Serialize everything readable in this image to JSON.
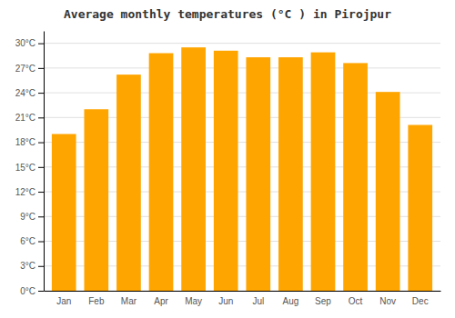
{
  "chart_data": {
    "type": "bar",
    "title": "Average monthly temperatures (°C ) in Pirojpur",
    "categories": [
      "Jan",
      "Feb",
      "Mar",
      "Apr",
      "May",
      "Jun",
      "Jul",
      "Aug",
      "Sep",
      "Oct",
      "Nov",
      "Dec"
    ],
    "values": [
      19.0,
      22.0,
      26.2,
      28.8,
      29.5,
      29.1,
      28.3,
      28.3,
      28.9,
      27.6,
      24.1,
      20.1
    ],
    "color": "#FFA500",
    "ylim": [
      0,
      31.5
    ],
    "yticks": [
      {
        "value": 0,
        "label": "0°C"
      },
      {
        "value": 3,
        "label": "3°C"
      },
      {
        "value": 6,
        "label": "6°C"
      },
      {
        "value": 9,
        "label": "9°C"
      },
      {
        "value": 12,
        "label": "12°C"
      },
      {
        "value": 15,
        "label": "15°C"
      },
      {
        "value": 18,
        "label": "18°C"
      },
      {
        "value": 21,
        "label": "21°C"
      },
      {
        "value": 24,
        "label": "24°C"
      },
      {
        "value": 27,
        "label": "27°C"
      },
      {
        "value": 30,
        "label": "30°C"
      }
    ],
    "grid": true
  }
}
